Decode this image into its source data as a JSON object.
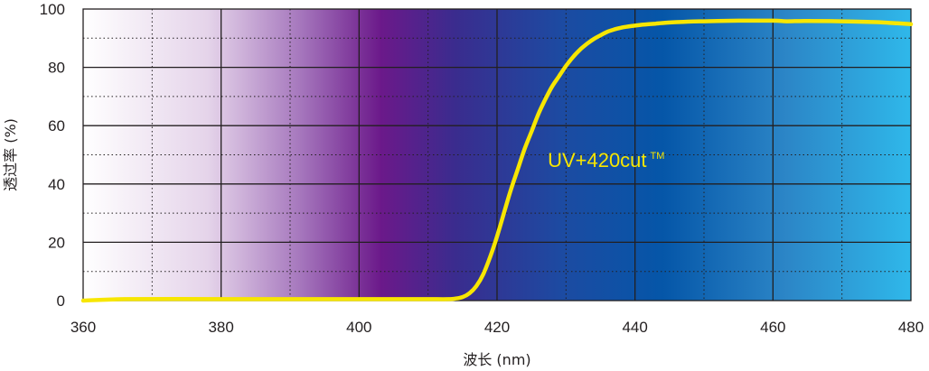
{
  "chart_data": {
    "type": "line",
    "xlabel": "波长 (nm)",
    "ylabel": "透过率 (%)",
    "xlim": [
      360,
      480
    ],
    "ylim": [
      0,
      100
    ],
    "x_ticks": [
      "360",
      "380",
      "400",
      "420",
      "440",
      "460",
      "480"
    ],
    "y_ticks": [
      "0",
      "20",
      "40",
      "60",
      "80",
      "100"
    ],
    "grid": "solid major lines every 20 units; dotted minor lines every 10 nm and every 10 %",
    "background": "vertical gradient from white at 360 nm through purple near 400 nm to blue and light cyan at 480 nm",
    "series": [
      {
        "name": "UV+420cut",
        "name_mark": "TM",
        "color": "#f7e600",
        "x": [
          360,
          366,
          380,
          390,
          400,
          405,
          410,
          413,
          414,
          415,
          416,
          417,
          418,
          419,
          420,
          421,
          422,
          423,
          424,
          425,
          426,
          427,
          428,
          429,
          430,
          431,
          432,
          433,
          434,
          435,
          436,
          437,
          438,
          439,
          440,
          441,
          442,
          443,
          444,
          446,
          448,
          450,
          452,
          455,
          460,
          462,
          465,
          470,
          475,
          478,
          480
        ],
        "y": [
          0,
          0.5,
          0.5,
          0.5,
          0.5,
          0.5,
          0.5,
          0.5,
          0.7,
          1.2,
          2.5,
          5,
          9,
          15,
          22,
          30,
          38,
          45,
          52,
          58,
          64,
          69,
          73.5,
          77,
          80.5,
          83.5,
          86,
          88,
          89.7,
          91,
          92.2,
          93,
          93.6,
          94,
          94.3,
          94.6,
          94.8,
          95,
          95.2,
          95.5,
          95.7,
          95.8,
          95.9,
          96,
          96,
          95.8,
          95.9,
          95.8,
          95.5,
          95.1,
          94.8
        ]
      }
    ],
    "annotation": {
      "text": "UV+420cut",
      "mark": "TM",
      "x": 428,
      "y": 48
    }
  },
  "colors": {
    "curve": "#f7e600",
    "grid": "#231f20",
    "gradient_stops": [
      "#ffffff",
      "#e5d4ea",
      "#a779be",
      "#6b198a",
      "#3a2c8e",
      "#1c4ba2",
      "#0556a8",
      "#2c86c7",
      "#2fb8ea"
    ]
  }
}
